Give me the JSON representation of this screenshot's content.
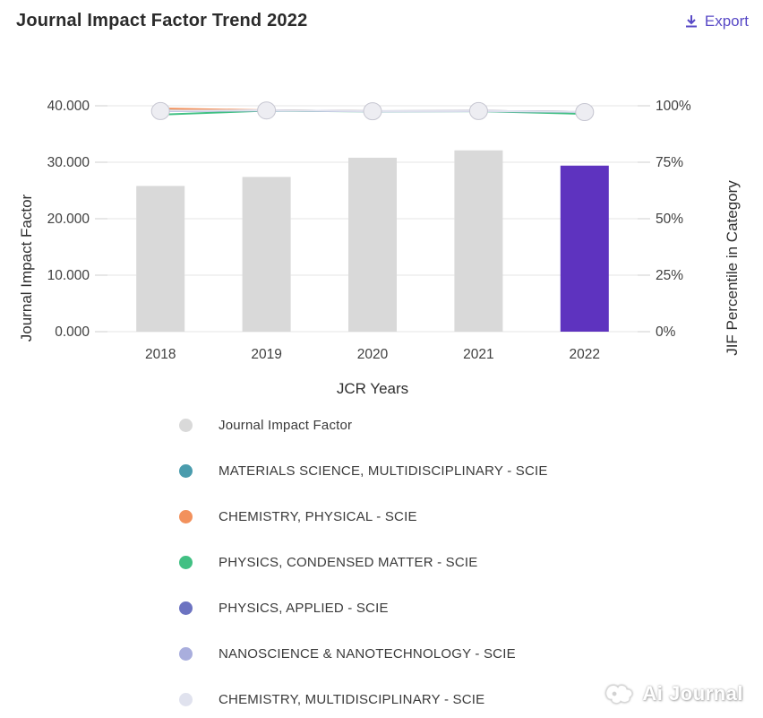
{
  "header": {
    "title": "Journal Impact Factor Trend 2022",
    "export_label": "Export",
    "accent_color": "#5849c6"
  },
  "chart_data": {
    "type": "bar+line",
    "categories": [
      "2018",
      "2019",
      "2020",
      "2021",
      "2022"
    ],
    "xlabel": "JCR Years",
    "left_axis": {
      "label": "Journal Impact Factor",
      "ticks": [
        "0.000",
        "10.000",
        "20.000",
        "30.000",
        "40.000"
      ],
      "range": [
        0,
        40
      ]
    },
    "right_axis": {
      "label": "JIF Percentile in Category",
      "ticks": [
        "0%",
        "25%",
        "50%",
        "75%",
        "100%"
      ],
      "range": [
        0,
        100
      ]
    },
    "grid": true,
    "bar_series": {
      "name": "Journal Impact Factor",
      "values": [
        25.8,
        27.4,
        30.8,
        32.1,
        29.4
      ],
      "default_color": "#d9d9d9",
      "highlight_color": "#5e33bf",
      "highlight_index": 4
    },
    "line_series": [
      {
        "name": "MATERIALS SCIENCE, MULTIDISCIPLINARY - SCIE",
        "color": "#4a9cad",
        "values": [
          97.9,
          98.0,
          97.6,
          97.7,
          97.4
        ]
      },
      {
        "name": "CHEMISTRY, PHYSICAL - SCIE",
        "color": "#f2915c",
        "values": [
          98.8,
          98.0,
          97.6,
          97.7,
          97.4
        ]
      },
      {
        "name": "PHYSICS, CONDENSED MATTER - SCIE",
        "color": "#41c083",
        "values": [
          96.1,
          97.8,
          97.5,
          97.6,
          96.4
        ]
      },
      {
        "name": "PHYSICS, APPLIED - SCIE",
        "color": "#6c73c1",
        "values": [
          97.7,
          97.9,
          97.6,
          97.7,
          97.4
        ]
      },
      {
        "name": "NANOSCIENCE & NANOTECHNOLOGY - SCIE",
        "color": "#a9aedd",
        "values": [
          97.6,
          97.9,
          97.5,
          97.6,
          97.3
        ]
      },
      {
        "name": "CHEMISTRY, MULTIDISCIPLINARY - SCIE",
        "color": "#e0e2ee",
        "values": [
          97.8,
          98.0,
          97.6,
          97.7,
          97.4
        ]
      }
    ],
    "marker": {
      "fill": "#ededf2",
      "stroke": "#c6c6d1"
    },
    "colors": {
      "gridline": "#e6e6e6",
      "tick": "#cfcfcf",
      "tick_text": "#3f3f3f"
    }
  },
  "legend": {
    "items": [
      {
        "label": "Journal Impact Factor",
        "color": "#d9d9d9"
      },
      {
        "label": "MATERIALS SCIENCE, MULTIDISCIPLINARY - SCIE",
        "color": "#4a9cad"
      },
      {
        "label": "CHEMISTRY, PHYSICAL - SCIE",
        "color": "#f2915c"
      },
      {
        "label": "PHYSICS, CONDENSED MATTER - SCIE",
        "color": "#41c083"
      },
      {
        "label": "PHYSICS, APPLIED - SCIE",
        "color": "#6c73c1"
      },
      {
        "label": "NANOSCIENCE & NANOTECHNOLOGY - SCIE",
        "color": "#a9aedd"
      },
      {
        "label": "CHEMISTRY, MULTIDISCIPLINARY - SCIE",
        "color": "#e0e2ee"
      }
    ]
  },
  "watermark": {
    "text": "Ai Journal"
  }
}
